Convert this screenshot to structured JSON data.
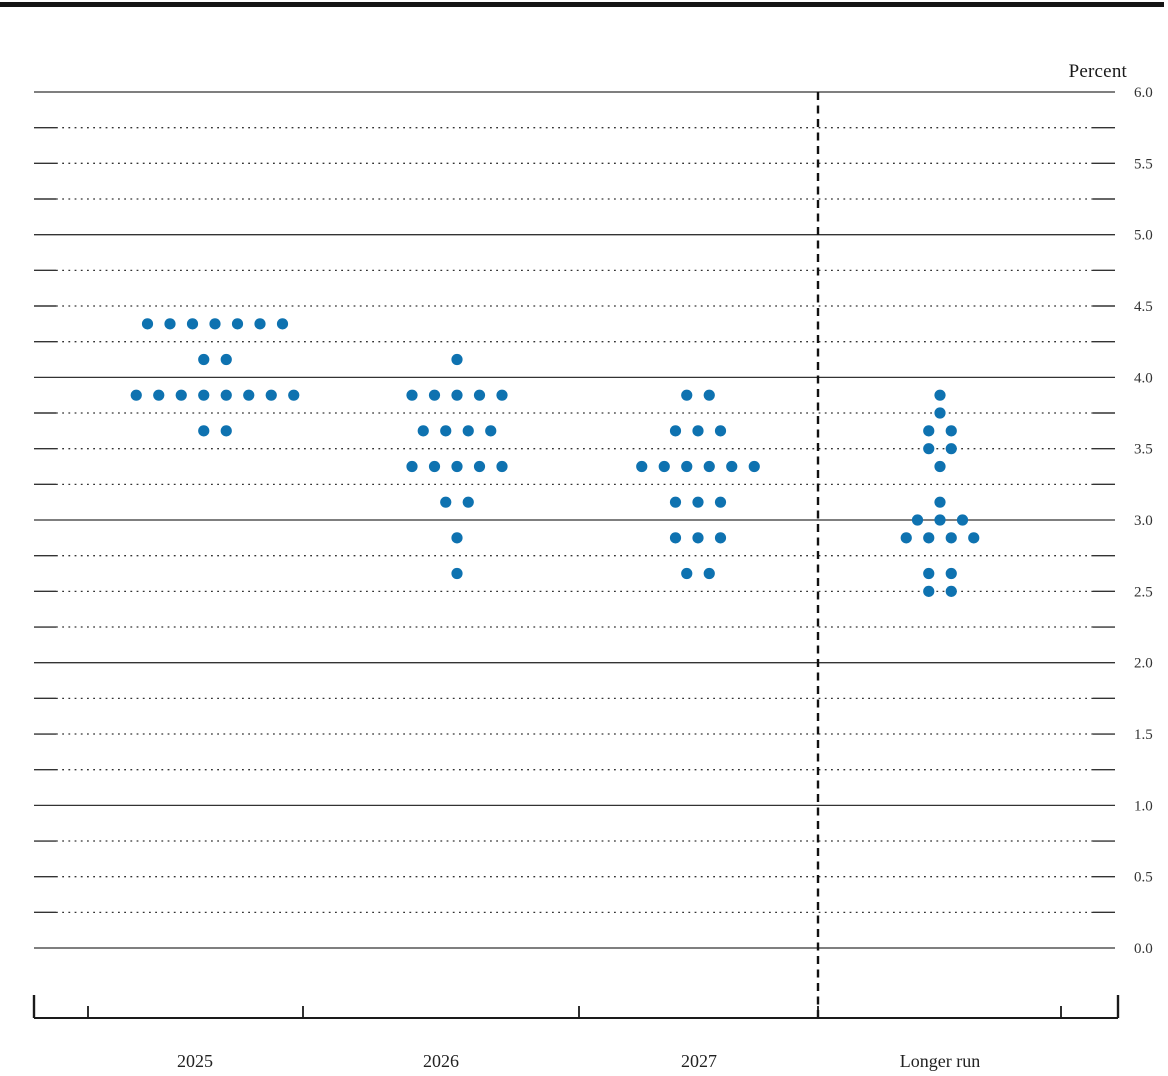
{
  "chart_data": {
    "type": "scatter",
    "subtype": "fomc-dot-plot",
    "ylabel": "Percent",
    "axis": {
      "ymin": 0.0,
      "ymax": 6.0,
      "grid_step": 0.25,
      "label_step": 0.5,
      "tick_labels": [
        "6.0",
        "5.5",
        "5.0",
        "4.5",
        "4.0",
        "3.5",
        "3.0",
        "2.5",
        "2.0",
        "1.5",
        "1.0",
        "0.5",
        "0.0"
      ]
    },
    "categories": [
      "2025",
      "2026",
      "2027",
      "Longer run"
    ],
    "dashed_separator_before": "Longer run",
    "dot_color": "#0e72b0",
    "grid_color": "#333333",
    "axis_color": "#1a1a1a",
    "columns": [
      {
        "label": "2025",
        "dots": [
          {
            "value": 4.375,
            "count": 7
          },
          {
            "value": 4.125,
            "count": 2
          },
          {
            "value": 3.875,
            "count": 8
          },
          {
            "value": 3.625,
            "count": 2
          }
        ]
      },
      {
        "label": "2026",
        "dots": [
          {
            "value": 4.125,
            "count": 1
          },
          {
            "value": 3.875,
            "count": 5
          },
          {
            "value": 3.625,
            "count": 4
          },
          {
            "value": 3.375,
            "count": 5
          },
          {
            "value": 3.125,
            "count": 2
          },
          {
            "value": 2.875,
            "count": 1
          },
          {
            "value": 2.625,
            "count": 1
          }
        ]
      },
      {
        "label": "2027",
        "dots": [
          {
            "value": 3.875,
            "count": 2
          },
          {
            "value": 3.625,
            "count": 3
          },
          {
            "value": 3.375,
            "count": 6
          },
          {
            "value": 3.125,
            "count": 3
          },
          {
            "value": 2.875,
            "count": 3
          },
          {
            "value": 2.625,
            "count": 2
          }
        ]
      },
      {
        "label": "Longer run",
        "dots": [
          {
            "value": 3.875,
            "count": 1
          },
          {
            "value": 3.75,
            "count": 1
          },
          {
            "value": 3.625,
            "count": 2
          },
          {
            "value": 3.5,
            "count": 2
          },
          {
            "value": 3.375,
            "count": 1
          },
          {
            "value": 3.125,
            "count": 1
          },
          {
            "value": 3.0,
            "count": 3
          },
          {
            "value": 2.875,
            "count": 4
          },
          {
            "value": 2.625,
            "count": 2
          },
          {
            "value": 2.5,
            "count": 2
          }
        ]
      }
    ]
  }
}
